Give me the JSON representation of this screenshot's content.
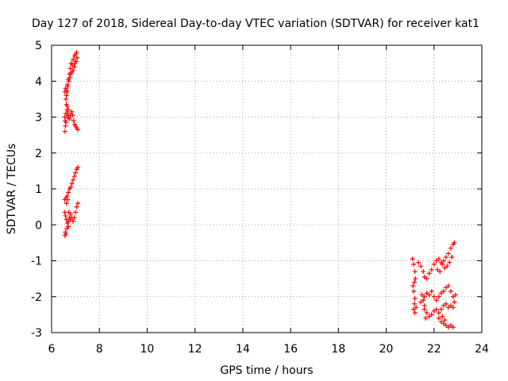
{
  "chart_data": {
    "type": "scatter",
    "title": "Day 127 of 2018, Sidereal Day-to-day VTEC variation (SDTVAR) for receiver kat1",
    "xlabel": "GPS time / hours",
    "ylabel": "SDTVAR / TECUs",
    "xlim": [
      6,
      24
    ],
    "ylim": [
      -3,
      5
    ],
    "xticks": [
      "6",
      "8",
      "10",
      "12",
      "14",
      "16",
      "18",
      "20",
      "22",
      "24"
    ],
    "yticks": [
      "-3",
      "-2",
      "-1",
      "0",
      "1",
      "2",
      "3",
      "4",
      "5"
    ],
    "grid": true,
    "marker": "plus",
    "color": "#ff0000",
    "series": [
      {
        "points": [
          [
            6.55,
            3.7
          ],
          [
            6.58,
            3.8
          ],
          [
            6.62,
            3.75
          ],
          [
            6.66,
            3.9
          ],
          [
            6.7,
            4.05
          ],
          [
            6.74,
            4.2
          ],
          [
            6.78,
            4.35
          ],
          [
            6.82,
            4.5
          ],
          [
            6.86,
            4.45
          ],
          [
            6.9,
            4.6
          ],
          [
            6.95,
            4.7
          ],
          [
            7.0,
            4.75
          ],
          [
            7.05,
            4.8
          ],
          [
            7.07,
            4.65
          ],
          [
            7.02,
            4.55
          ],
          [
            6.98,
            4.5
          ],
          [
            6.95,
            4.4
          ],
          [
            6.9,
            4.3
          ],
          [
            6.85,
            4.25
          ],
          [
            6.8,
            4.2
          ],
          [
            6.76,
            4.1
          ],
          [
            6.72,
            4.0
          ],
          [
            6.68,
            3.85
          ],
          [
            6.65,
            3.7
          ],
          [
            6.62,
            3.6
          ],
          [
            6.6,
            3.5
          ],
          [
            6.55,
            3.0
          ],
          [
            6.57,
            2.9
          ],
          [
            6.6,
            3.1
          ],
          [
            6.64,
            3.2
          ],
          [
            6.68,
            3.1
          ],
          [
            6.72,
            3.0
          ],
          [
            6.76,
            2.95
          ],
          [
            6.8,
            3.05
          ],
          [
            6.84,
            3.15
          ],
          [
            6.88,
            3.05
          ],
          [
            6.92,
            2.9
          ],
          [
            6.96,
            2.8
          ],
          [
            7.0,
            2.75
          ],
          [
            7.05,
            2.7
          ],
          [
            7.1,
            2.65
          ],
          [
            6.62,
            3.35
          ],
          [
            6.66,
            3.3
          ],
          [
            6.58,
            2.75
          ],
          [
            6.56,
            2.6
          ],
          [
            6.6,
            2.85
          ],
          [
            6.65,
            3.0
          ],
          [
            6.7,
            3.2
          ],
          [
            6.55,
            0.7
          ],
          [
            6.6,
            0.75
          ],
          [
            6.65,
            0.8
          ],
          [
            6.7,
            0.9
          ],
          [
            6.75,
            1.0
          ],
          [
            6.8,
            1.05
          ],
          [
            6.85,
            1.15
          ],
          [
            6.9,
            1.25
          ],
          [
            6.95,
            1.35
          ],
          [
            7.0,
            1.45
          ],
          [
            7.05,
            1.55
          ],
          [
            7.1,
            1.6
          ],
          [
            6.62,
            0.6
          ],
          [
            6.68,
            0.7
          ],
          [
            6.55,
            0.35
          ],
          [
            6.58,
            0.25
          ],
          [
            6.62,
            0.15
          ],
          [
            6.66,
            0.05
          ],
          [
            6.7,
            -0.05
          ],
          [
            6.58,
            -0.2
          ],
          [
            6.56,
            -0.3
          ],
          [
            6.6,
            -0.25
          ],
          [
            6.64,
            -0.1
          ],
          [
            6.7,
            0.1
          ],
          [
            6.75,
            0.2
          ],
          [
            6.8,
            0.3
          ],
          [
            6.85,
            0.2
          ],
          [
            6.9,
            0.1
          ],
          [
            6.95,
            0.2
          ],
          [
            7.0,
            0.35
          ],
          [
            7.05,
            0.5
          ],
          [
            7.1,
            0.6
          ],
          [
            6.78,
            0.15
          ],
          [
            6.72,
            0.35
          ]
        ]
      },
      {
        "points": [
          [
            21.1,
            -0.95
          ],
          [
            21.15,
            -1.1
          ],
          [
            21.2,
            -1.3
          ],
          [
            21.22,
            -1.5
          ],
          [
            21.18,
            -1.6
          ],
          [
            21.12,
            -1.7
          ],
          [
            21.15,
            -1.85
          ],
          [
            21.2,
            -2.05
          ],
          [
            21.18,
            -2.2
          ],
          [
            21.15,
            -2.35
          ],
          [
            21.2,
            -2.45
          ],
          [
            21.25,
            -2.3
          ],
          [
            21.35,
            -1.05
          ],
          [
            21.45,
            -1.15
          ],
          [
            21.55,
            -1.3
          ],
          [
            21.6,
            -1.45
          ],
          [
            21.7,
            -1.5
          ],
          [
            21.8,
            -1.35
          ],
          [
            21.9,
            -1.25
          ],
          [
            22.0,
            -1.1
          ],
          [
            22.1,
            -1.0
          ],
          [
            22.2,
            -0.95
          ],
          [
            22.3,
            -1.05
          ],
          [
            22.4,
            -1.0
          ],
          [
            22.5,
            -0.9
          ],
          [
            22.6,
            -0.8
          ],
          [
            22.7,
            -0.65
          ],
          [
            22.8,
            -0.55
          ],
          [
            22.85,
            -0.5
          ],
          [
            22.75,
            -0.9
          ],
          [
            22.65,
            -1.05
          ],
          [
            22.55,
            -1.15
          ],
          [
            22.45,
            -1.2
          ],
          [
            22.35,
            -1.1
          ],
          [
            22.25,
            -1.3
          ],
          [
            22.15,
            -1.25
          ],
          [
            21.5,
            -1.95
          ],
          [
            21.55,
            -2.1
          ],
          [
            21.6,
            -2.0
          ],
          [
            21.7,
            -1.9
          ],
          [
            21.8,
            -1.95
          ],
          [
            21.9,
            -1.85
          ],
          [
            22.0,
            -2.0
          ],
          [
            22.1,
            -2.1
          ],
          [
            22.2,
            -2.0
          ],
          [
            22.3,
            -1.9
          ],
          [
            22.4,
            -1.85
          ],
          [
            22.5,
            -1.75
          ],
          [
            22.6,
            -1.7
          ],
          [
            22.7,
            -1.85
          ],
          [
            22.8,
            -2.0
          ],
          [
            22.9,
            -1.95
          ],
          [
            22.85,
            -2.15
          ],
          [
            21.45,
            -2.15
          ],
          [
            21.6,
            -2.25
          ],
          [
            21.6,
            -2.35
          ],
          [
            21.7,
            -2.45
          ],
          [
            21.8,
            -2.55
          ],
          [
            21.9,
            -2.5
          ],
          [
            22.0,
            -2.4
          ],
          [
            22.1,
            -2.35
          ],
          [
            22.2,
            -2.45
          ],
          [
            22.3,
            -2.35
          ],
          [
            22.4,
            -2.25
          ],
          [
            22.5,
            -2.2
          ],
          [
            22.6,
            -2.3
          ],
          [
            22.7,
            -2.25
          ],
          [
            22.8,
            -2.3
          ],
          [
            21.65,
            -2.6
          ],
          [
            22.2,
            -2.6
          ],
          [
            22.3,
            -2.7
          ],
          [
            22.4,
            -2.75
          ],
          [
            22.5,
            -2.8
          ],
          [
            22.6,
            -2.85
          ],
          [
            22.7,
            -2.8
          ],
          [
            22.8,
            -2.85
          ],
          [
            22.35,
            -2.55
          ],
          [
            22.45,
            -2.65
          ]
        ]
      }
    ]
  }
}
